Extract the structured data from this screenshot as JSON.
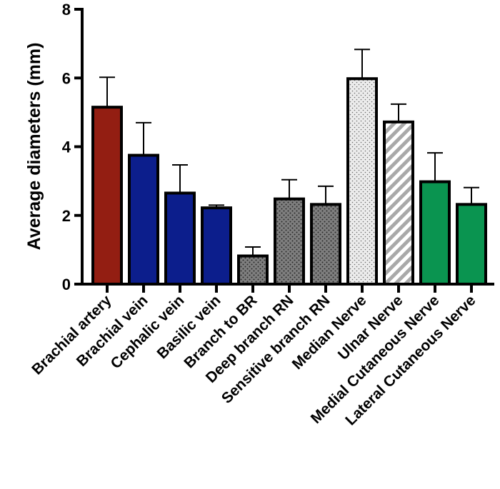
{
  "chart_data": {
    "type": "bar",
    "title": "",
    "xlabel": "",
    "ylabel": "Average diameters (mm)",
    "ylim": [
      0,
      8
    ],
    "yticks": [
      0,
      2,
      4,
      6,
      8
    ],
    "grid": false,
    "categories": [
      "Brachial artery",
      "Brachial vein",
      "Cephalic vein",
      "Basilic vein",
      "Branch to BR",
      "Deep branch RN",
      "Sensitive branch RN",
      "Median Nerve",
      "Ulnar Nerve",
      "Medial Cutaneous Nerve",
      "Lateral Cutaneous Nerve"
    ],
    "values": [
      5.15,
      3.75,
      2.65,
      2.22,
      0.82,
      2.48,
      2.32,
      5.98,
      4.72,
      2.98,
      2.32
    ],
    "errors": [
      0.87,
      0.95,
      0.82,
      0.08,
      0.26,
      0.56,
      0.53,
      0.85,
      0.52,
      0.84,
      0.49
    ],
    "fills": [
      "solid",
      "solid",
      "solid",
      "solid",
      "dots",
      "dots",
      "dots",
      "dots-light",
      "stripes",
      "solid",
      "solid"
    ],
    "colors": [
      "#931e12",
      "#0c1e8c",
      "#0c1e8c",
      "#0c1e8c",
      "#7f7f7f",
      "#7f7f7f",
      "#7f7f7f",
      "#e8e8e8",
      "#a9a9a9",
      "#0a9450",
      "#0a9450"
    ]
  }
}
